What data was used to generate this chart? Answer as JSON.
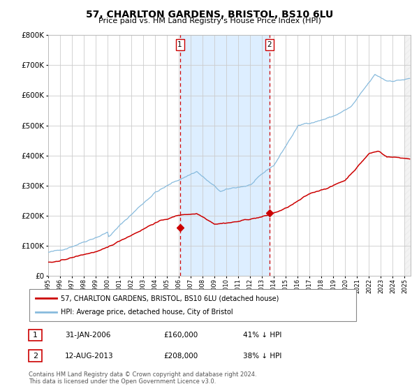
{
  "title": "57, CHARLTON GARDENS, BRISTOL, BS10 6LU",
  "subtitle": "Price paid vs. HM Land Registry's House Price Index (HPI)",
  "legend_line1": "57, CHARLTON GARDENS, BRISTOL, BS10 6LU (detached house)",
  "legend_line2": "HPI: Average price, detached house, City of Bristol",
  "footer": "Contains HM Land Registry data © Crown copyright and database right 2024.\nThis data is licensed under the Open Government Licence v3.0.",
  "transaction1_date": "31-JAN-2006",
  "transaction1_price": "£160,000",
  "transaction1_hpi": "41% ↓ HPI",
  "transaction2_date": "12-AUG-2013",
  "transaction2_price": "£208,000",
  "transaction2_hpi": "38% ↓ HPI",
  "hpi_color": "#88bbdd",
  "price_color": "#cc0000",
  "shade_color": "#ddeeff",
  "vline_color": "#cc0000",
  "background_color": "#ffffff",
  "plot_bg_color": "#ffffff",
  "grid_color": "#cccccc",
  "ylim": [
    0,
    800000
  ],
  "yticks": [
    0,
    100000,
    200000,
    300000,
    400000,
    500000,
    600000,
    700000,
    800000
  ],
  "t1_x": 2006.083,
  "t1_y": 160000,
  "t2_x": 2013.617,
  "t2_y": 208000,
  "xmin": 1995.0,
  "xmax": 2025.5
}
